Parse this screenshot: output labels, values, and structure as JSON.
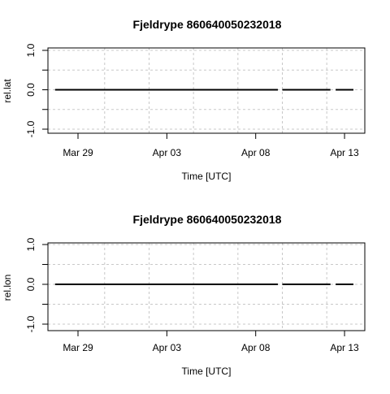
{
  "chart_data": [
    {
      "type": "line",
      "title": "Fjeldrype 860640050232018",
      "xlabel": "Time [UTC]",
      "ylabel": "rel.lat",
      "x_ticks": [
        "Mar 29",
        "Apr 03",
        "Apr 08",
        "Apr 13"
      ],
      "y_ticks": [
        "-1.0",
        "0.0",
        "1.0"
      ],
      "xlim": [
        "2018-03-28",
        "2018-04-13"
      ],
      "ylim": [
        -1,
        1
      ],
      "grid": true,
      "series": [
        {
          "color": "#000000",
          "x": [
            "2018-03-27 17:00",
            "2018-04-09 06:00"
          ],
          "y": [
            0,
            0
          ]
        },
        {
          "color": "#000000",
          "x": [
            "2018-04-09 12:00",
            "2018-04-12 05:00"
          ],
          "y": [
            0,
            0
          ]
        },
        {
          "color": "#000000",
          "x": [
            "2018-04-12 12:00",
            "2018-04-13 12:00"
          ],
          "y": [
            0,
            0
          ]
        }
      ]
    },
    {
      "type": "line",
      "title": "Fjeldrype 860640050232018",
      "xlabel": "Time [UTC]",
      "ylabel": "rel.lon",
      "x_ticks": [
        "Mar 29",
        "Apr 03",
        "Apr 08",
        "Apr 13"
      ],
      "y_ticks": [
        "-1.0",
        "0.0",
        "1.0"
      ],
      "xlim": [
        "2018-03-28",
        "2018-04-13"
      ],
      "ylim": [
        -1,
        1
      ],
      "grid": true,
      "series": [
        {
          "color": "#000000",
          "x": [
            "2018-03-27 17:00",
            "2018-04-09 06:00"
          ],
          "y": [
            0,
            0
          ]
        },
        {
          "color": "#000000",
          "x": [
            "2018-04-09 12:00",
            "2018-04-12 05:00"
          ],
          "y": [
            0,
            0
          ]
        },
        {
          "color": "#000000",
          "x": [
            "2018-04-12 12:00",
            "2018-04-13 12:00"
          ],
          "y": [
            0,
            0
          ]
        }
      ]
    }
  ]
}
